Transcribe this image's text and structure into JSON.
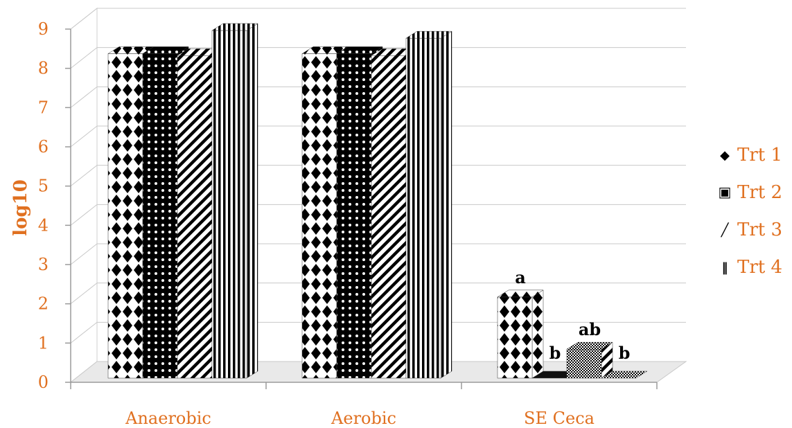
{
  "chart_data": {
    "type": "bar",
    "categories": [
      "Anaerobic",
      "Aerobic",
      "SE Ceca"
    ],
    "series": [
      {
        "name": "Trt 1",
        "values": [
          8.4,
          8.4,
          2.1
        ],
        "pattern": "diamonds"
      },
      {
        "name": "Trt 2",
        "values": [
          8.4,
          8.4,
          0.0
        ],
        "pattern": "dots"
      },
      {
        "name": "Trt 3",
        "values": [
          8.35,
          8.35,
          0.75
        ],
        "pattern": "diagonal"
      },
      {
        "name": "Trt 4",
        "values": [
          9.0,
          8.8,
          0.0
        ],
        "pattern": "vertical"
      }
    ],
    "annotations": [
      {
        "category": "SE Ceca",
        "series": "Trt 1",
        "text": "a"
      },
      {
        "category": "SE Ceca",
        "series": "Trt 2",
        "text": "b"
      },
      {
        "category": "SE Ceca",
        "series": "Trt 3",
        "text": "ab"
      },
      {
        "category": "SE Ceca",
        "series": "Trt 4",
        "text": "b"
      }
    ],
    "ylabel": "log10",
    "xlabel": "",
    "title": "",
    "ylim": [
      0,
      9
    ],
    "yticks": [
      "0",
      "1",
      "2",
      "3",
      "4",
      "5",
      "6",
      "7",
      "8",
      "9"
    ],
    "grid": true,
    "legend_position": "right",
    "style": "3d-column",
    "colors": {
      "axis_text": "#e07020",
      "bar": "#000000",
      "background": "#ffffff",
      "grid": "#c8c8c8"
    }
  }
}
